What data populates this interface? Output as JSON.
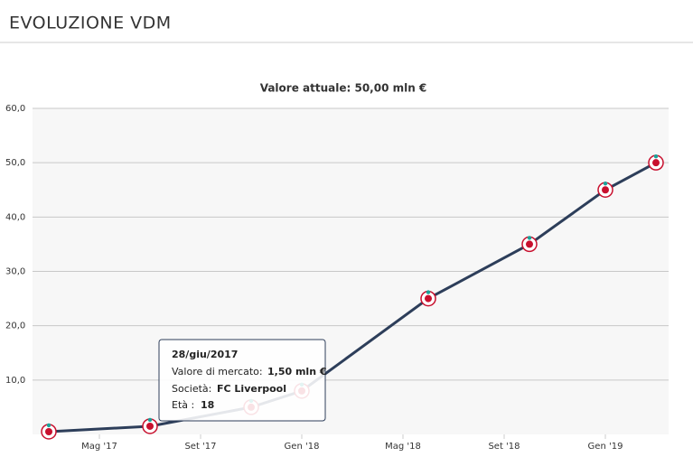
{
  "header": {
    "title": "EVOLUZIONE VDM"
  },
  "chart_data": {
    "type": "line",
    "title": "Valore attuale: 50,00 mln €",
    "x": [
      "2017-03",
      "2017-07",
      "2017-11",
      "2018-01",
      "2018-06",
      "2018-10",
      "2019-01",
      "2019-03"
    ],
    "series": [
      {
        "color": "#2d3e5a",
        "values": [
          0.5,
          1.5,
          5,
          8,
          25,
          35,
          45,
          50
        ]
      }
    ],
    "xlim": [
      "2017-02",
      "2019-04"
    ],
    "xticks": [
      {
        "value": "2017-05",
        "label": "Mag '17"
      },
      {
        "value": "2017-09",
        "label": "Set '17"
      },
      {
        "value": "2018-01",
        "label": "Gen '18"
      },
      {
        "value": "2018-05",
        "label": "Mag '18"
      },
      {
        "value": "2018-09",
        "label": "Set '18"
      },
      {
        "value": "2019-01",
        "label": "Gen '19"
      }
    ],
    "ylim": [
      0,
      60
    ],
    "yticks": [
      {
        "value": 10,
        "label": "10,0"
      },
      {
        "value": 20,
        "label": "20,0"
      },
      {
        "value": 30,
        "label": "30,0"
      },
      {
        "value": 40,
        "label": "40,0"
      },
      {
        "value": 50,
        "label": "50,0"
      },
      {
        "value": 60,
        "label": "60,0"
      }
    ],
    "grid": true
  },
  "tooltip": {
    "date": "28/giu/2017",
    "value_label": "Valore di mercato:",
    "value": "1,50 mln €",
    "club_label": "Società:",
    "club": "FC Liverpool",
    "age_label": "Età :",
    "age": "18"
  }
}
